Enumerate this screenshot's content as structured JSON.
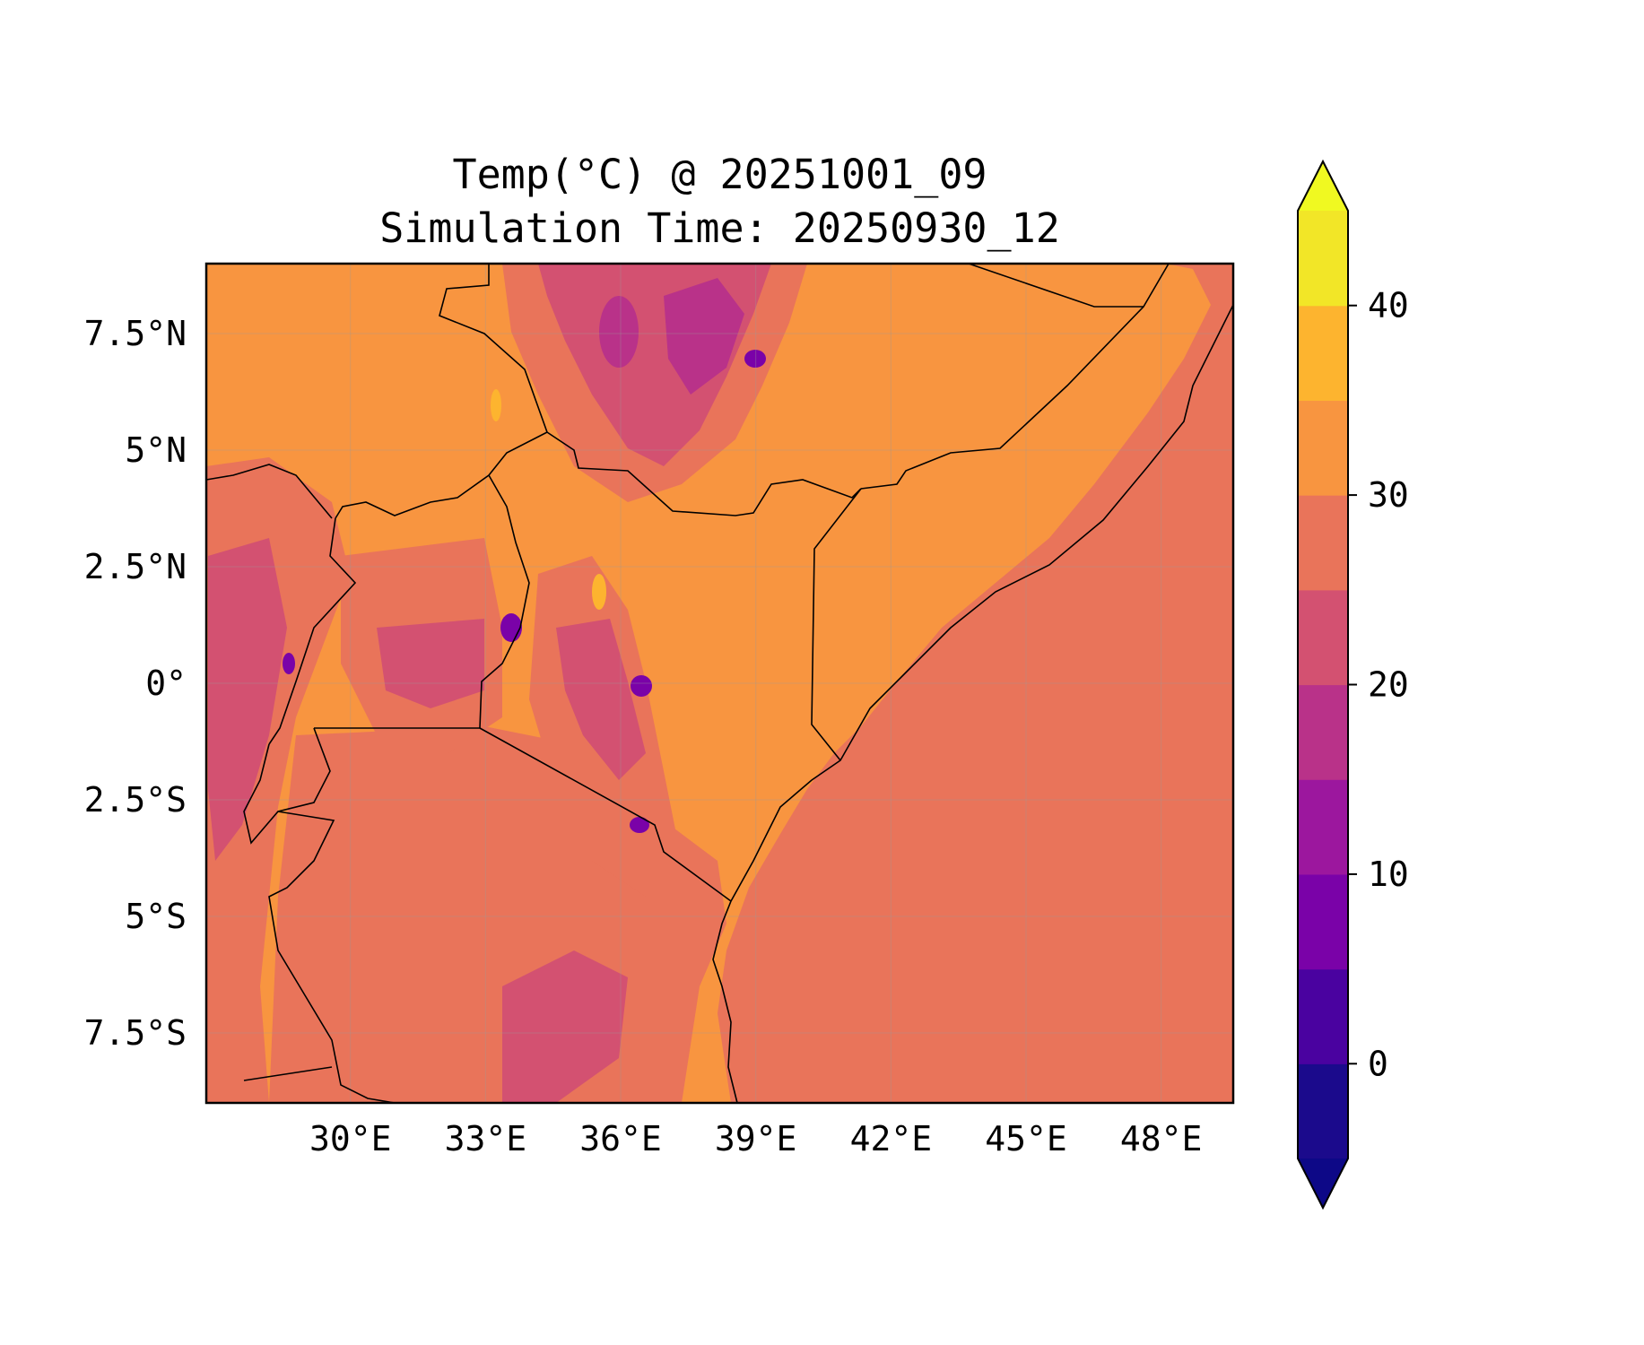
{
  "title": "Temp(°C) @ 20251001_09",
  "subtitle": "Simulation Time: 20250930_12",
  "map": {
    "lon_range": [
      26.8,
      49.6
    ],
    "lat_range": [
      -9.0,
      9.0
    ],
    "ocean_value_degC": 27.5,
    "land_base_value_degC": 32.5
  },
  "axes": {
    "x_ticks": [
      {
        "value": 30,
        "label": "30°E"
      },
      {
        "value": 33,
        "label": "33°E"
      },
      {
        "value": 36,
        "label": "36°E"
      },
      {
        "value": 39,
        "label": "39°E"
      },
      {
        "value": 42,
        "label": "42°E"
      },
      {
        "value": 45,
        "label": "45°E"
      },
      {
        "value": 48,
        "label": "48°E"
      }
    ],
    "y_ticks": [
      {
        "value": 7.5,
        "label": "7.5°N"
      },
      {
        "value": 5,
        "label": "5°N"
      },
      {
        "value": 2.5,
        "label": "2.5°N"
      },
      {
        "value": 0,
        "label": "0°"
      },
      {
        "value": -2.5,
        "label": "2.5°S"
      },
      {
        "value": -5,
        "label": "5°S"
      },
      {
        "value": -7.5,
        "label": "7.5°S"
      }
    ],
    "grid": true
  },
  "colorbar": {
    "levels": [
      -5,
      0,
      5,
      10,
      15,
      20,
      25,
      30,
      35,
      40,
      45
    ],
    "colors": [
      "#1b0a8c",
      "#4a02a0",
      "#7a02a8",
      "#9c179e",
      "#b93289",
      "#d35171",
      "#e9745a",
      "#f89540",
      "#fdb42f",
      "#f2e627"
    ],
    "under_color": "#0d0887",
    "over_color": "#f0f921",
    "ticks": [
      {
        "value": 0,
        "label": "0"
      },
      {
        "value": 10,
        "label": "10"
      },
      {
        "value": 20,
        "label": "20"
      },
      {
        "value": 30,
        "label": "30"
      },
      {
        "value": 40,
        "label": "40"
      }
    ],
    "extend": "both"
  }
}
